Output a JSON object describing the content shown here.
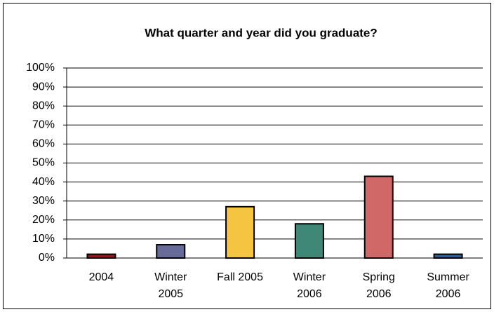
{
  "chart_data": {
    "type": "bar",
    "title": "What quarter and year did you graduate?",
    "categories": [
      "2004",
      "Winter\n2005",
      "Fall 2005",
      "Winter\n2006",
      "Spring\n2006",
      "Summer\n2006"
    ],
    "values": [
      2,
      7,
      27,
      18,
      43,
      2
    ],
    "colors": [
      "#8b1a1a",
      "#666b9a",
      "#f5c542",
      "#3f8878",
      "#d16868",
      "#2f5f8f"
    ],
    "ylim": [
      0,
      100
    ],
    "yticks": [
      {
        "value": 0,
        "label": "0%"
      },
      {
        "value": 10,
        "label": "10%"
      },
      {
        "value": 20,
        "label": "20%"
      },
      {
        "value": 30,
        "label": "30%"
      },
      {
        "value": 40,
        "label": "40%"
      },
      {
        "value": 50,
        "label": "50%"
      },
      {
        "value": 60,
        "label": "60%"
      },
      {
        "value": 70,
        "label": "70%"
      },
      {
        "value": 80,
        "label": "80%"
      },
      {
        "value": 90,
        "label": "90%"
      },
      {
        "value": 100,
        "label": "100%"
      }
    ],
    "grid": true
  }
}
